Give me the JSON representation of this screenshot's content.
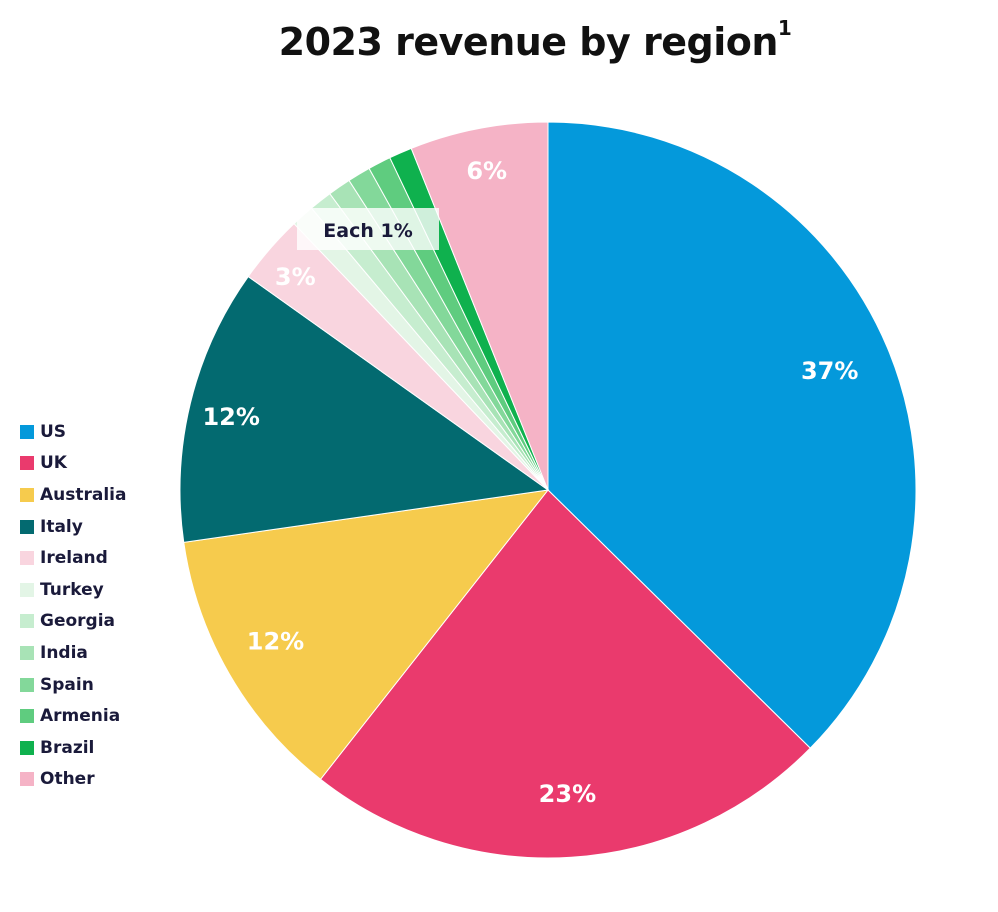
{
  "chart_data": {
    "type": "pie",
    "title": "2023 revenue by region",
    "title_footnote": "1",
    "start_angle_deg": 0,
    "direction": "clockwise",
    "slices": [
      {
        "name": "US",
        "value": 37,
        "label": "37%",
        "color": "#0499DB",
        "label_color": "#ffffff"
      },
      {
        "name": "UK",
        "value": 23,
        "label": "23%",
        "color": "#EA3A6D",
        "label_color": "#ffffff"
      },
      {
        "name": "Australia",
        "value": 12,
        "label": "12%",
        "color": "#F6CB4D",
        "label_color": "#ffffff"
      },
      {
        "name": "Italy",
        "value": 12,
        "label": "12%",
        "color": "#036A70",
        "label_color": "#ffffff"
      },
      {
        "name": "Ireland",
        "value": 3,
        "label": "3%",
        "color": "#F9D5DF",
        "label_color": "#ffffff"
      },
      {
        "name": "Turkey",
        "value": 1,
        "label": "",
        "color": "#E3F5E6",
        "label_color": "#ffffff"
      },
      {
        "name": "Georgia",
        "value": 1,
        "label": "",
        "color": "#C6EDCF",
        "label_color": "#ffffff"
      },
      {
        "name": "India",
        "value": 1,
        "label": "",
        "color": "#A8E3B6",
        "label_color": "#ffffff"
      },
      {
        "name": "Spain",
        "value": 1,
        "label": "",
        "color": "#83D89A",
        "label_color": "#ffffff"
      },
      {
        "name": "Armenia",
        "value": 1,
        "label": "",
        "color": "#5FCC7F",
        "label_color": "#ffffff"
      },
      {
        "name": "Brazil",
        "value": 1,
        "label": "",
        "color": "#0FB14E",
        "label_color": "#ffffff"
      },
      {
        "name": "Other",
        "value": 6,
        "label": "6%",
        "color": "#F5B3C6",
        "label_color": "#ffffff"
      }
    ],
    "group_annotation": "Each 1%",
    "group_annotation_applies_to": [
      "Turkey",
      "Georgia",
      "India",
      "Spain",
      "Armenia",
      "Brazil"
    ],
    "legend": [
      "US",
      "UK",
      "Australia",
      "Italy",
      "Ireland",
      "Turkey",
      "Georgia",
      "India",
      "Spain",
      "Armenia",
      "Brazil",
      "Other"
    ],
    "legend_position": "left"
  }
}
